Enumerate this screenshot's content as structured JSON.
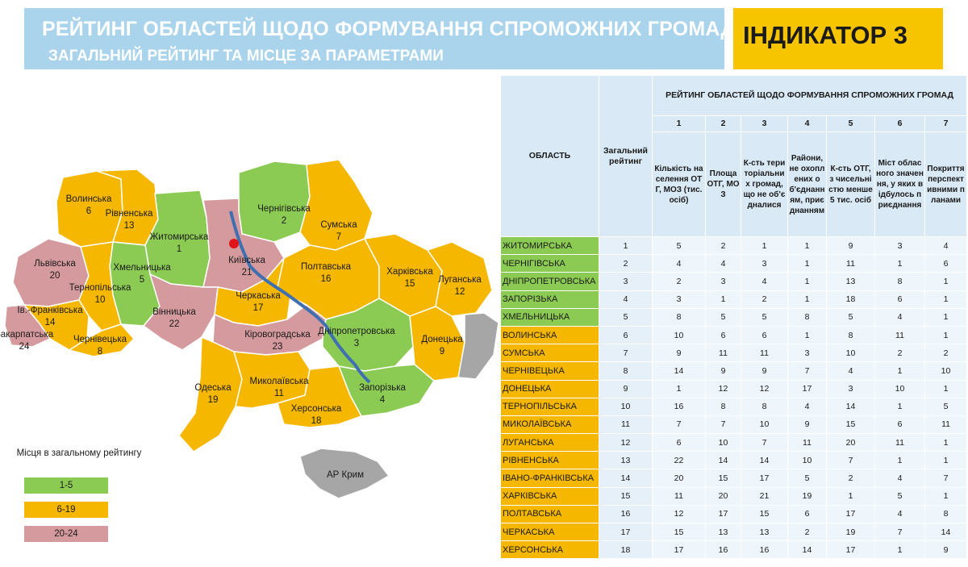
{
  "header": {
    "title": "РЕЙТИНГ ОБЛАСТЕЙ ЩОДО ФОРМУВАННЯ СПРОМОЖНИХ ГРОМАД",
    "subtitle": "ЗАГАЛЬНИЙ РЕЙТИНГ ТА МІСЦЕ ЗА ПАРАМЕТРАМИ",
    "indicator": "ІНДИКАТОР 3"
  },
  "colors": {
    "group_1_5": "#8ccb53",
    "group_6_19": "#f6b700",
    "group_20_24": "#d59a9e",
    "crimea": "#a6a6a6",
    "header_bg": "#a9d4ec",
    "indicator_bg": "#f7c400"
  },
  "map": {
    "regions": [
      {
        "name": "Волинська",
        "rank": "6"
      },
      {
        "name": "Рівненська",
        "rank": "13"
      },
      {
        "name": "Житомирська",
        "rank": "1"
      },
      {
        "name": "Чернігівська",
        "rank": "2"
      },
      {
        "name": "Сумська",
        "rank": "7"
      },
      {
        "name": "Львівська",
        "rank": "20"
      },
      {
        "name": "Хмельницька",
        "rank": "5"
      },
      {
        "name": "Київська",
        "rank": "21"
      },
      {
        "name": "Полтавська",
        "rank": "16"
      },
      {
        "name": "Харківська",
        "rank": "15"
      },
      {
        "name": "Луганська",
        "rank": "12"
      },
      {
        "name": "Тернопільська",
        "rank": "10"
      },
      {
        "name": "Черкаська",
        "rank": "17"
      },
      {
        "name": "Івано-Франківська",
        "display": "Ів.-Франківська",
        "rank": "14"
      },
      {
        "name": "Вінницька",
        "rank": "22"
      },
      {
        "name": "Закарпатська",
        "rank": "24"
      },
      {
        "name": "Чернівецька",
        "rank": "8"
      },
      {
        "name": "Кіровоградська",
        "rank": "23"
      },
      {
        "name": "Дніпропетровська",
        "rank": "3"
      },
      {
        "name": "Донецька",
        "rank": "9"
      },
      {
        "name": "Одеська",
        "rank": "19"
      },
      {
        "name": "Миколаївська",
        "rank": "11"
      },
      {
        "name": "Запорізька",
        "rank": "4"
      },
      {
        "name": "Херсонська",
        "rank": "18"
      }
    ],
    "crimea_label": "АР Крим"
  },
  "legend": {
    "title": "Місця в загальному рейтингу",
    "items": [
      {
        "label": "1-5",
        "color": "#8ccb53"
      },
      {
        "label": "6-19",
        "color": "#f6b700"
      },
      {
        "label": "20-24",
        "color": "#d59a9e"
      }
    ]
  },
  "chart_data": {
    "type": "table",
    "title": "РЕЙТИНГ ОБЛАСТЕЙ ЩОДО ФОРМУВАННЯ СПРОМОЖНИХ ГРОМАД",
    "col_region": "ОБЛАСТЬ",
    "col_overall": "Загальний рейтинг",
    "params": [
      {
        "num": "1",
        "label": "Кількість населення ОТГ, МОЗ (тис. осіб)"
      },
      {
        "num": "2",
        "label": "Площа ОТГ, МОЗ"
      },
      {
        "num": "3",
        "label": "К-сть територіальних громад, що не об'єдналися"
      },
      {
        "num": "4",
        "label": "Райони, не охоплених об'єднанням, приєднанням"
      },
      {
        "num": "5",
        "label": "К-сть ОТГ, з чисельністю менше 5 тис. осіб"
      },
      {
        "num": "6",
        "label": "Міст обласного значення, у яких відбулось приєднання"
      },
      {
        "num": "7",
        "label": "Покриття перспективними планами"
      }
    ],
    "rows": [
      {
        "region": "ЖИТОМИРСЬКА",
        "overall": "1",
        "values": [
          "5",
          "2",
          "1",
          "1",
          "9",
          "3",
          "4"
        ]
      },
      {
        "region": "ЧЕРНІГІВСЬКА",
        "overall": "2",
        "values": [
          "4",
          "4",
          "3",
          "1",
          "11",
          "1",
          "6"
        ]
      },
      {
        "region": "ДНІПРОПЕТРОВСЬКА",
        "overall": "3",
        "values": [
          "2",
          "3",
          "4",
          "1",
          "13",
          "8",
          "1"
        ]
      },
      {
        "region": "ЗАПОРІЗЬКА",
        "overall": "4",
        "values": [
          "3",
          "1",
          "2",
          "1",
          "18",
          "6",
          "1"
        ]
      },
      {
        "region": "ХМЕЛЬНИЦЬКА",
        "overall": "5",
        "values": [
          "8",
          "5",
          "5",
          "8",
          "5",
          "4",
          "1"
        ]
      },
      {
        "region": "ВОЛИНСЬКА",
        "overall": "6",
        "values": [
          "10",
          "6",
          "6",
          "1",
          "8",
          "11",
          "1"
        ]
      },
      {
        "region": "СУМСЬКА",
        "overall": "7",
        "values": [
          "9",
          "11",
          "11",
          "3",
          "10",
          "2",
          "2"
        ]
      },
      {
        "region": "ЧЕРНІВЕЦЬКА",
        "overall": "8",
        "values": [
          "14",
          "9",
          "9",
          "7",
          "4",
          "1",
          "10"
        ]
      },
      {
        "region": "ДОНЕЦЬКА",
        "overall": "9",
        "values": [
          "1",
          "12",
          "12",
          "17",
          "3",
          "10",
          "1"
        ]
      },
      {
        "region": "ТЕРНОПІЛЬСЬКА",
        "overall": "10",
        "values": [
          "16",
          "8",
          "8",
          "4",
          "14",
          "1",
          "5"
        ]
      },
      {
        "region": "МИКОЛАЇВСЬКА",
        "overall": "11",
        "values": [
          "7",
          "7",
          "10",
          "9",
          "15",
          "6",
          "11"
        ]
      },
      {
        "region": "ЛУГАНСЬКА",
        "overall": "12",
        "values": [
          "6",
          "10",
          "7",
          "11",
          "20",
          "11",
          "1"
        ]
      },
      {
        "region": "РІВНЕНСЬКА",
        "overall": "13",
        "values": [
          "22",
          "14",
          "14",
          "10",
          "7",
          "1",
          "1"
        ]
      },
      {
        "region": "ІВАНО-ФРАНКІВСЬКА",
        "overall": "14",
        "values": [
          "20",
          "15",
          "17",
          "5",
          "2",
          "4",
          "7"
        ]
      },
      {
        "region": "ХАРКІВСЬКА",
        "overall": "15",
        "values": [
          "11",
          "20",
          "21",
          "19",
          "1",
          "5",
          "1"
        ]
      },
      {
        "region": "ПОЛТАВСЬКА",
        "overall": "16",
        "values": [
          "12",
          "17",
          "15",
          "6",
          "17",
          "4",
          "8"
        ]
      },
      {
        "region": "ЧЕРКАСЬКА",
        "overall": "17",
        "values": [
          "15",
          "13",
          "13",
          "2",
          "19",
          "7",
          "14"
        ]
      },
      {
        "region": "ХЕРСОНСЬКА",
        "overall": "18",
        "values": [
          "17",
          "16",
          "16",
          "14",
          "17",
          "1",
          "9"
        ]
      }
    ]
  }
}
